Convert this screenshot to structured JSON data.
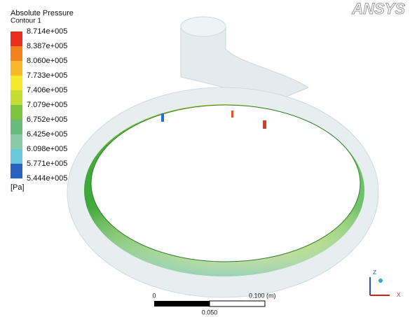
{
  "logo": "ANSYS",
  "legend": {
    "title": "Absolute Pressure",
    "subtitle": "Contour 1",
    "levels": [
      "8.714e+005",
      "8.387e+005",
      "8.060e+005",
      "7.733e+005",
      "7.406e+005",
      "7.079e+005",
      "6.752e+005",
      "6.425e+005",
      "6.098e+005",
      "5.771e+005",
      "5.444e+005"
    ],
    "unit": "[Pa]"
  },
  "scale_bar": {
    "start": "0",
    "end": "0.100 (m)",
    "middle": "0.050"
  },
  "triad": {
    "x": "X",
    "z": "Z"
  }
}
